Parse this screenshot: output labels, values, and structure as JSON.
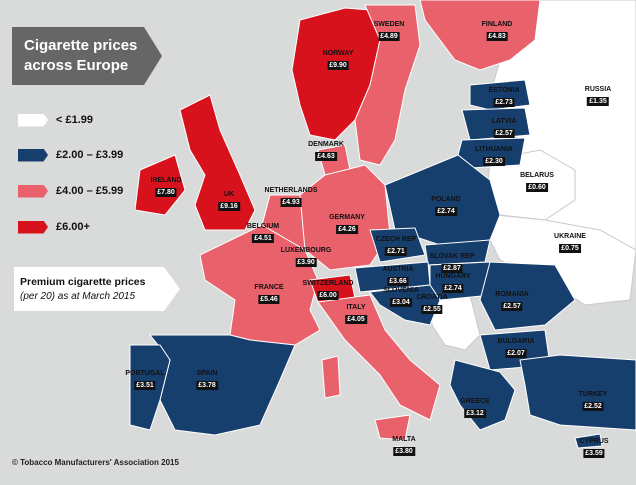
{
  "title": "Cigarette prices\nacross Europe",
  "legend": [
    {
      "label": "< £1.99",
      "color": "#ffffff"
    },
    {
      "label": "£2.00 – £3.99",
      "color": "#173f6e"
    },
    {
      "label": "£4.00 – £5.99",
      "color": "#e8616b"
    },
    {
      "label": "£6.00+",
      "color": "#d7121d"
    }
  ],
  "note": {
    "title": "Premium cigarette prices",
    "subtitle": "(per 20) as at March 2015"
  },
  "countries": [
    {
      "name": "SWEDEN",
      "price": "£4.89"
    },
    {
      "name": "FINLAND",
      "price": "£4.83"
    },
    {
      "name": "NORWAY",
      "price": "£9.90"
    },
    {
      "name": "RUSSIA",
      "price": "£1.35"
    },
    {
      "name": "ESTONIA",
      "price": "£2.73"
    },
    {
      "name": "LATVIA",
      "price": "£2.57"
    },
    {
      "name": "LITHUANIA",
      "price": "£2.30"
    },
    {
      "name": "DENMARK",
      "price": "£4.63"
    },
    {
      "name": "IRELAND",
      "price": "£7.80"
    },
    {
      "name": "UK",
      "price": "£9.16"
    },
    {
      "name": "NETHERLANDS",
      "price": "£4.93"
    },
    {
      "name": "BELARUS",
      "price": "£0.60"
    },
    {
      "name": "GERMANY",
      "price": "£4.26"
    },
    {
      "name": "POLAND",
      "price": "£2.74"
    },
    {
      "name": "BELGIUM",
      "price": "£4.51"
    },
    {
      "name": "LUXEMBOURG",
      "price": "£3.90"
    },
    {
      "name": "CZECH REP",
      "price": "£2.71"
    },
    {
      "name": "UKRAINE",
      "price": "£0.75"
    },
    {
      "name": "SLOVAK REP",
      "price": "£2.87"
    },
    {
      "name": "AUSTRIA",
      "price": "£3.66"
    },
    {
      "name": "HUNGARY",
      "price": "£2.74"
    },
    {
      "name": "FRANCE",
      "price": "£5.46"
    },
    {
      "name": "SWITZERLAND",
      "price": "£6.00"
    },
    {
      "name": "SLOVENIA",
      "price": "£3.04"
    },
    {
      "name": "CROATIA",
      "price": "£2.55"
    },
    {
      "name": "ROMANIA",
      "price": "£2.57"
    },
    {
      "name": "ITALY",
      "price": "£4.05"
    },
    {
      "name": "BULGARIA",
      "price": "£2.07"
    },
    {
      "name": "PORTUGAL",
      "price": "£3.51"
    },
    {
      "name": "SPAIN",
      "price": "£3.78"
    },
    {
      "name": "GREECE",
      "price": "£3.12"
    },
    {
      "name": "TURKEY",
      "price": "£2.52"
    },
    {
      "name": "MALTA",
      "price": "£3.80"
    },
    {
      "name": "CYPRUS",
      "price": "£3.59"
    }
  ],
  "copyright": "© Tobacco Manufacturers' Association 2015"
}
